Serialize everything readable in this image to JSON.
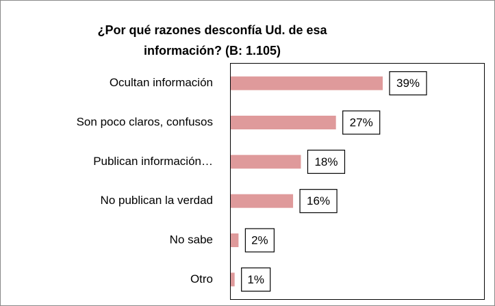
{
  "chart_data": {
    "type": "bar",
    "orientation": "horizontal",
    "title": [
      "¿Por qué razones desconfía Ud. de esa",
      "información? (B: 1.105)"
    ],
    "categories": [
      "Ocultan información",
      "Son poco claros, confusos",
      "Publican información…",
      "No publican la verdad",
      "No sabe",
      "Otro"
    ],
    "values": [
      39,
      27,
      18,
      16,
      2,
      1
    ],
    "value_labels": [
      "39%",
      "27%",
      "18%",
      "16%",
      "2%",
      "1%"
    ],
    "color": "#df9a9b",
    "xlim": [
      0,
      65
    ]
  }
}
